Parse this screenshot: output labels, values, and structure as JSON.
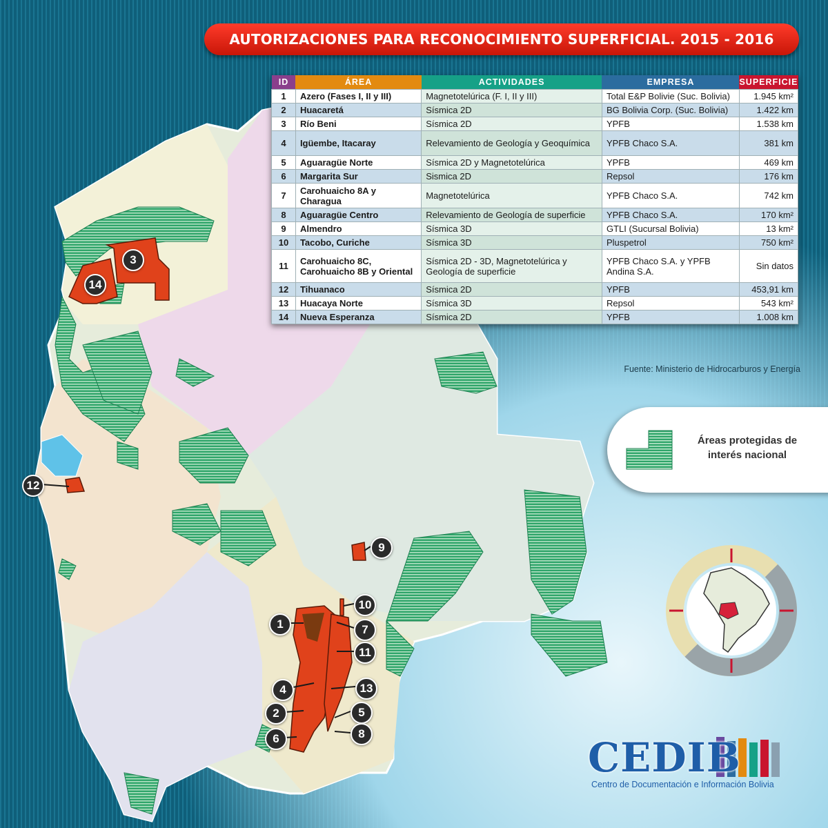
{
  "title": "AUTORIZACIONES PARA RECONOCIMIENTO SUPERFICIAL. 2015 - 2016",
  "table": {
    "headers": {
      "id": "ID",
      "area": "ÁREA",
      "actividades": "ACTIVIDADES",
      "empresa": "EMPRESA",
      "superficie": "SUPERFICIE"
    },
    "rows": [
      {
        "id": "1",
        "area": "Azero (Fases I, II y III)",
        "actividades": "Magnetotelúrica (F. I, II y III)",
        "empresa": "Total E&P Bolivie (Suc. Bolivia)",
        "superficie": "1.945 km²"
      },
      {
        "id": "2",
        "area": "Huacaretá",
        "actividades": "Sísmica 2D",
        "empresa": "BG Bolivia Corp. (Suc. Bolivia)",
        "superficie": "1.422 km"
      },
      {
        "id": "3",
        "area": "Río Beni",
        "actividades": "Sísmica 2D",
        "empresa": "YPFB",
        "superficie": "1.538 km"
      },
      {
        "id": "4",
        "area": "Igüembe, Itacaray",
        "actividades": "Relevamiento de Geología y Geoquímica",
        "empresa": "YPFB Chaco S.A.",
        "superficie": "381 km"
      },
      {
        "id": "5",
        "area": "Aguaragüe Norte",
        "actividades": "Sísmica 2D y Magnetotelúrica",
        "empresa": "YPFB",
        "superficie": "469 km"
      },
      {
        "id": "6",
        "area": "Margarita Sur",
        "actividades": "Sismica 2D",
        "empresa": "Repsol",
        "superficie": "176 km"
      },
      {
        "id": "7",
        "area": "Carohuaicho 8A y Charagua",
        "actividades": "Magnetotelúrica",
        "empresa": "YPFB Chaco S.A.",
        "superficie": "742 km"
      },
      {
        "id": "8",
        "area": "Aguaragüe Centro",
        "actividades": "Relevamiento de Geología de superficie",
        "empresa": "YPFB Chaco S.A.",
        "superficie": "170 km²"
      },
      {
        "id": "9",
        "area": "Almendro",
        "actividades": "Sísmica 3D",
        "empresa": "GTLI (Sucursal Bolivia)",
        "superficie": "13 km²"
      },
      {
        "id": "10",
        "area": "Tacobo, Curiche",
        "actividades": "Sísmica 3D",
        "empresa": "Pluspetrol",
        "superficie": "750 km²"
      },
      {
        "id": "11",
        "area": "Carohuaicho 8C, Carohuaicho 8B y Oriental",
        "actividades": "Sísmica 2D - 3D, Magnetotelúrica y Geología de superficie",
        "empresa": "YPFB Chaco S.A. y YPFB Andina S.A.",
        "superficie": "Sin datos"
      },
      {
        "id": "12",
        "area": "Tihuanaco",
        "actividades": "Sísmica 2D",
        "empresa": "YPFB",
        "superficie": "453,91 km"
      },
      {
        "id": "13",
        "area": "Huacaya Norte",
        "actividades": "Sísmica 3D",
        "empresa": "Repsol",
        "superficie": "543 km²"
      },
      {
        "id": "14",
        "area": "Nueva Esperanza",
        "actividades": "Sísmica 2D",
        "empresa": "YPFB",
        "superficie": "1.008 km"
      }
    ]
  },
  "source": "Fuente: Ministerio de Hidrocarburos y Energía",
  "legend": {
    "label": "Áreas protegidas de interés nacional",
    "color": "#2fa56a"
  },
  "markers": [
    "1",
    "2",
    "3",
    "4",
    "5",
    "6",
    "7",
    "8",
    "9",
    "10",
    "11",
    "12",
    "13",
    "14"
  ],
  "logo": {
    "name": "CEDIB",
    "subtitle": "Centro de Documentación e Información Bolivia"
  },
  "colors": {
    "title": "#e52b18",
    "block": "#e0421b",
    "protected": "#2fa56a"
  }
}
